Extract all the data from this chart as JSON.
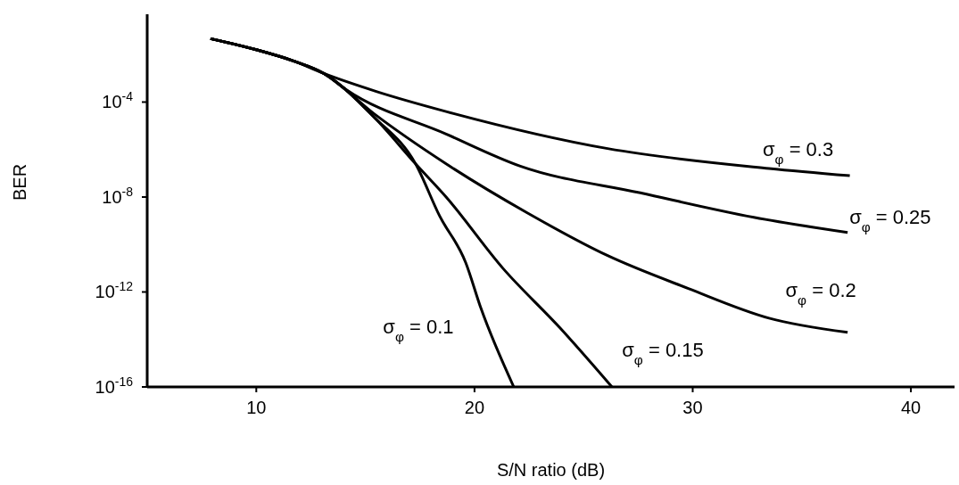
{
  "chart_data": {
    "type": "line",
    "xlabel": "S/N ratio (dB)",
    "ylabel": "BER",
    "xlim": [
      5,
      42
    ],
    "xticks": [
      10,
      20,
      30,
      40
    ],
    "ylim": [
      1e-16,
      0.5
    ],
    "yticks": [
      {
        "value": 0.0001,
        "label": "10$^{-4}$"
      },
      {
        "value": 1e-08,
        "label": "10$^{-8}$"
      },
      {
        "value": 1e-12,
        "label": "10$^{-12}$"
      },
      {
        "value": 1e-16,
        "label": "10$^{-16}$"
      }
    ],
    "log": true,
    "series": [
      {
        "name": "σ$_{φ}$ = 0.3",
        "color": "#000000",
        "x": [
          7.9,
          10,
          11.7,
          13.1,
          15.5,
          18.7,
          26.1,
          33.5,
          37.2
        ],
        "values": [
          0.047,
          0.016,
          0.0054,
          0.0016,
          0.00028,
          4e-05,
          1.1e-06,
          1.6e-07,
          7.9e-08
        ]
      },
      {
        "name": "σ$_{φ}$ = 0.25",
        "color": "#000000",
        "x": [
          7.9,
          10,
          11.7,
          13.1,
          14.1,
          18.7,
          22.1,
          27.6,
          32.8,
          37.1
        ],
        "values": [
          0.047,
          0.016,
          0.0054,
          0.0016,
          0.00034,
          4.5e-06,
          2e-07,
          1.5e-08,
          1.4e-09,
          3.2e-10
        ]
      },
      {
        "name": "σ$_{φ}$ = 0.2",
        "color": "#000000",
        "x": [
          7.9,
          10,
          11.7,
          13.1,
          15.4,
          18.7,
          22.4,
          26.1,
          29.8,
          33.5,
          37.1
        ],
        "values": [
          0.047,
          0.016,
          0.0054,
          0.0016,
          3.2e-05,
          2.5e-07,
          2.2e-09,
          3.4e-11,
          1.4e-12,
          7.9e-14,
          2e-14
        ]
      },
      {
        "name": "σ$_{φ}$ = 0.15",
        "color": "#000000",
        "x": [
          7.9,
          10,
          11.7,
          13.1,
          15.4,
          17.3,
          18.7,
          21.3,
          23.9,
          26.3
        ],
        "values": [
          0.047,
          0.016,
          0.0054,
          0.0016,
          2.3e-05,
          2.5e-07,
          1e-08,
          1e-11,
          3.2e-14,
          1e-16
        ]
      },
      {
        "name": "σ$_{φ}$ = 0.1",
        "color": "#000000",
        "x": [
          7.9,
          10,
          11.7,
          13.1,
          15.4,
          17.3,
          18.4,
          19.6,
          20.3,
          21.8
        ],
        "values": [
          0.047,
          0.016,
          0.0054,
          0.0016,
          2.3e-05,
          2.5e-07,
          1.6e-09,
          1.7e-11,
          2e-13,
          1e-16
        ]
      }
    ]
  }
}
